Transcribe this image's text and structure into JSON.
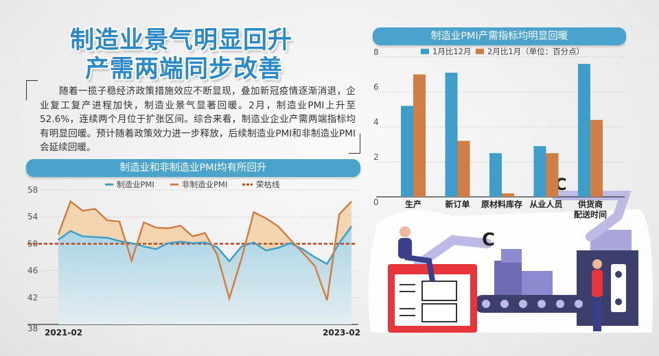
{
  "headline": {
    "line1": "制造业景气明显回升",
    "line2": "产需两端同步改善"
  },
  "paragraph": "随着一揽子稳经济政策措施效应不断显现，叠加新冠疫情逐渐消退，企业复工复产进程加快，制造业景气显著回暖。2月，制造业PMI上升至52.6%，连续两个月位于扩张区间。综合来看，制造业企业产需两端指标均有明显回暖。预计随着政策效力进一步释放，后续制造业PMI和非制造业PMI会延续回暖。",
  "colors": {
    "blue": "#3f9ec9",
    "orange": "#cf7f45",
    "threshold": "#b84a1c",
    "title": "#2b8ac6",
    "pill": "#4aa3cc"
  },
  "chart_data": [
    {
      "type": "line",
      "title": "制造业和非制造业PMI均有所回升",
      "x_start_label": "2021-02",
      "x_end_label": "2023-02",
      "ylim": [
        38,
        58
      ],
      "yticks": [
        38,
        42,
        46,
        50,
        54,
        58
      ],
      "legend": [
        "制造业PMI",
        "非制造业PMI",
        "荣枯线"
      ],
      "threshold": 50,
      "series": [
        {
          "name": "制造业PMI",
          "values": [
            50.6,
            51.9,
            51.1,
            51.0,
            50.9,
            50.4,
            50.1,
            49.6,
            49.2,
            50.1,
            50.3,
            50.1,
            50.2,
            49.5,
            47.4,
            49.6,
            50.2,
            49.0,
            49.4,
            50.1,
            49.2,
            48.0,
            47.0,
            50.1,
            52.6
          ]
        },
        {
          "name": "非制造业PMI",
          "values": [
            51.4,
            56.3,
            54.9,
            55.2,
            53.5,
            53.3,
            47.5,
            53.2,
            52.4,
            52.3,
            52.7,
            51.1,
            51.6,
            48.4,
            41.9,
            47.8,
            54.7,
            53.8,
            52.6,
            50.6,
            48.7,
            46.7,
            41.6,
            54.4,
            56.3
          ]
        }
      ]
    },
    {
      "type": "bar",
      "title": "制造业PMI产需指标均明显回暖",
      "legend": [
        "1月比12月",
        "2月比1月（单位：百分点）"
      ],
      "categories": [
        "生产",
        "新订单",
        "原材料库存",
        "从业人员",
        "供货商\n配送时间"
      ],
      "ylim": [
        0,
        8
      ],
      "yticks": [
        0,
        2,
        4,
        6,
        8
      ],
      "series": [
        {
          "name": "1月比12月",
          "values": [
            5.2,
            7.1,
            2.5,
            2.9,
            7.6
          ]
        },
        {
          "name": "2月比1月",
          "values": [
            7.0,
            3.2,
            0.2,
            2.5,
            4.4
          ]
        }
      ]
    }
  ]
}
